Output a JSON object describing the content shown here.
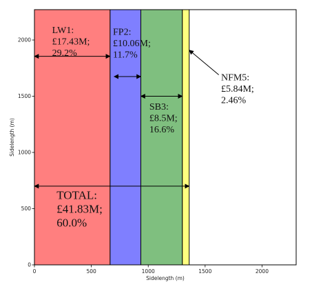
{
  "chart_data": {
    "type": "bar",
    "xlabel": "Sidelength (m)",
    "ylabel": "Sidelength (m)",
    "xlim": [
      0,
      2300
    ],
    "ylim": [
      0,
      2270
    ],
    "x_ticks": [
      0,
      500,
      1000,
      1500,
      2000
    ],
    "y_ticks": [
      0,
      500,
      1000,
      1500,
      2000
    ],
    "grid": false,
    "regions": [
      {
        "name": "LW1",
        "x0": 0,
        "x1": 665,
        "color": "#ff7f7f"
      },
      {
        "name": "FP2",
        "x0": 665,
        "x1": 935,
        "color": "#7f7fff"
      },
      {
        "name": "SB3",
        "x0": 935,
        "x1": 1300,
        "color": "#7fbf7f"
      },
      {
        "name": "NFM5",
        "x0": 1300,
        "x1": 1360,
        "color": "#ffff7f"
      }
    ],
    "annotations": [
      {
        "id": "lw1",
        "lines": [
          "LW1:",
          "£17.43M;",
          "29.2%"
        ],
        "tx": 155,
        "ty": 2060,
        "size": 14,
        "arrow": {
          "x0": 0,
          "x1": 665,
          "y": 1855,
          "both": true
        }
      },
      {
        "id": "fp2",
        "lines": [
          "FP2:",
          "£10.06M;",
          "11.7%"
        ],
        "tx": 690,
        "ty": 2045,
        "size": 14,
        "arrow": {
          "x0": 700,
          "x1": 935,
          "y": 1675,
          "both": true
        }
      },
      {
        "id": "sb3",
        "lines": [
          "SB3:",
          "£8.5M;",
          "16.6%"
        ],
        "tx": 1010,
        "ty": 1380,
        "size": 14,
        "arrow": {
          "x0": 935,
          "x1": 1300,
          "y": 1500,
          "both": true
        }
      },
      {
        "id": "nfm5",
        "lines": [
          "NFM5:",
          "£5.84M;",
          "2.46%"
        ],
        "tx": 1640,
        "ty": 1640,
        "size": 14,
        "arrow": {
          "fx": 1620,
          "fy": 1690,
          "tx": 1360,
          "ty": 1910,
          "both": false
        }
      },
      {
        "id": "total",
        "lines": [
          "TOTAL:",
          "£41.83M;",
          "60.0%"
        ],
        "tx": 195,
        "ty": 585,
        "size": 17,
        "arrow": {
          "x0": 0,
          "x1": 1360,
          "y": 700,
          "both": true
        }
      }
    ]
  }
}
